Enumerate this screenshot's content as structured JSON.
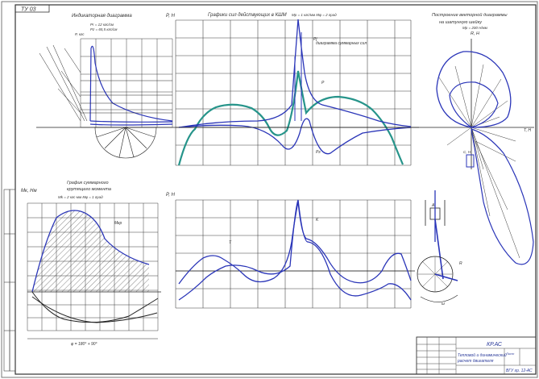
{
  "stamp": "ТУ 03",
  "panels": {
    "indicator": {
      "title": "Индикаторная диаграмма",
      "param1": "Pr = 12 кгс/см",
      "param2": "Pz = 65,5 кгс/см",
      "y_axis": "P, кгс"
    },
    "forces_main": {
      "title": "Графики сил действующих в КШМ",
      "scale": "Mp = 1 кгс/мм  Mφ = 2 град",
      "y_axis": "P, Н",
      "curve_labels": [
        "Pj",
        "P",
        "Pг"
      ],
      "annotation": "диаграмма суммарных сил"
    },
    "polar": {
      "title_line1": "Построение векторной диаграммы",
      "title_line2": "на шатунную шейку",
      "scale": "Mp = 200 Н/мм",
      "y_axis": "R, Н",
      "axis_label": "T, Н",
      "axis_label2": "C, Н"
    },
    "torque": {
      "title_line1": "График суммарного",
      "title_line2": "крутящего момента",
      "scale": "Mk = 2 кгс·мм  Mφ = 1 град",
      "y_axis": "Mк, Нм",
      "curve_label": "Mкр",
      "x_label": "φ = 180° + 90°"
    },
    "forces_bottom": {
      "y_axis": "P, Н",
      "curve_labels": [
        "T",
        "K"
      ]
    },
    "mechanism": {
      "labels": [
        "A",
        "R",
        "ω"
      ]
    }
  },
  "title_block": {
    "doc_code": "КР.АС",
    "doc_title_line1": "Тепловой и динамический",
    "doc_title_line2": "расчет двигателя",
    "org": "ВГУ гр. 12-АС",
    "sheet": "Лист"
  },
  "colors": {
    "line": "#2a35b8",
    "teal": "#26948a",
    "grid": "#3a3a3a",
    "frame": "#555555"
  }
}
